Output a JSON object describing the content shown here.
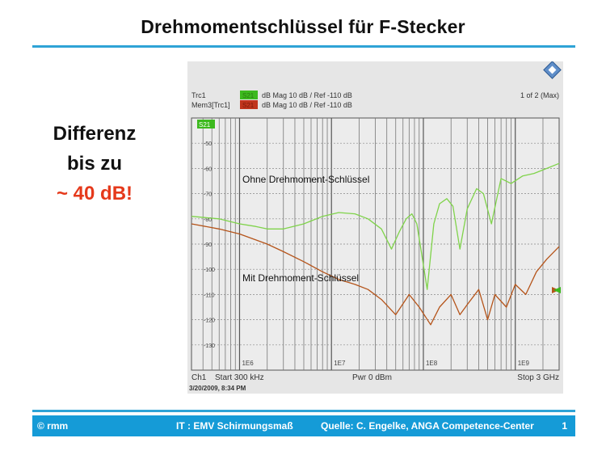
{
  "slide": {
    "title": "Drehmomentschlüssel für F-Stecker",
    "callout": {
      "line1": "Differenz",
      "line2": "bis zu",
      "line3": "~ 40 dB!"
    },
    "footer": {
      "left": "© rmm",
      "center": "IT : EMV Schirmungsmaß",
      "source": "Quelle: C. Engelke, ANGA Competence-Center",
      "page": "1"
    }
  },
  "analyzer": {
    "trace1_name": "Trc1",
    "trace1_param": "S21",
    "trace1_format": "dB Mag  10 dB /  Ref -110 dB",
    "trace2_name": "Mem3[Trc1]",
    "trace2_param": "S21",
    "trace2_format": "dB Mag  10 dB /  Ref -110 dB",
    "window_label": "1 of 2 (Max)",
    "active_marker": "S21",
    "channel": "Ch1",
    "start": "Start  300 kHz",
    "power": "Pwr  0 dBm",
    "stop": "Stop  3 GHz",
    "timestamp": "3/20/2009, 8:34 PM",
    "colors": {
      "trace1": "#7fd34a",
      "trace2": "#b5541a",
      "badge1": "#3cb91e",
      "badge2": "#c0351d"
    }
  },
  "chart_data": {
    "type": "line",
    "x_scale": "log",
    "xlim": [
      300000,
      3000000000
    ],
    "ylim": [
      -140,
      -40
    ],
    "y_ticks": [
      -50,
      -60,
      -70,
      -80,
      -90,
      -100,
      -110,
      -120,
      -130
    ],
    "x_tick_labels": [
      {
        "x": 1000000,
        "label": "1E6"
      },
      {
        "x": 10000000,
        "label": "1E7"
      },
      {
        "x": 100000000,
        "label": "1E8"
      },
      {
        "x": 1000000000,
        "label": "1E9"
      }
    ],
    "xlabel": "",
    "ylabel": "",
    "series": [
      {
        "name": "Ohne Drehmoment-Schlüssel",
        "color": "#7fd34a",
        "x": [
          300000,
          600000,
          1000000,
          1500000,
          2000000,
          3000000,
          5000000,
          8000000,
          12000000,
          18000000,
          25000000,
          35000000,
          45000000,
          55000000,
          65000000,
          75000000,
          85000000,
          95000000,
          110000000,
          130000000,
          150000000,
          180000000,
          210000000,
          250000000,
          300000000,
          380000000,
          450000000,
          550000000,
          700000000,
          900000000,
          1200000000,
          1600000000,
          2200000000,
          3000000000
        ],
        "y": [
          -79,
          -80,
          -82,
          -83,
          -84,
          -84,
          -82,
          -79,
          -77.5,
          -78,
          -80,
          -84,
          -92,
          -85,
          -80,
          -78,
          -82,
          -93,
          -108,
          -82,
          -74,
          -72,
          -75,
          -92,
          -76,
          -68,
          -70,
          -82,
          -64,
          -66,
          -63,
          -62,
          -60,
          -58
        ]
      },
      {
        "name": "Mit Drehmoment-Schlüssel",
        "color": "#b5541a",
        "x": [
          300000,
          600000,
          1000000,
          2000000,
          3000000,
          5000000,
          8000000,
          12000000,
          18000000,
          25000000,
          35000000,
          50000000,
          70000000,
          90000000,
          120000000,
          150000000,
          200000000,
          250000000,
          300000000,
          400000000,
          500000000,
          600000000,
          800000000,
          1000000000,
          1300000000,
          1700000000,
          2200000000,
          3000000000
        ],
        "y": [
          -82,
          -84,
          -86,
          -90,
          -93,
          -97,
          -101,
          -104,
          -106,
          -108,
          -112,
          -118,
          -110,
          -115,
          -122,
          -115,
          -110,
          -118,
          -114,
          -108,
          -120,
          -110,
          -115,
          -106,
          -110,
          -101,
          -96,
          -91
        ]
      }
    ],
    "annotations": [
      "Ohne Drehmoment-Schlüssel",
      "Mit Drehmoment-Schlüssel"
    ],
    "grid": true,
    "legend": "top-left"
  }
}
